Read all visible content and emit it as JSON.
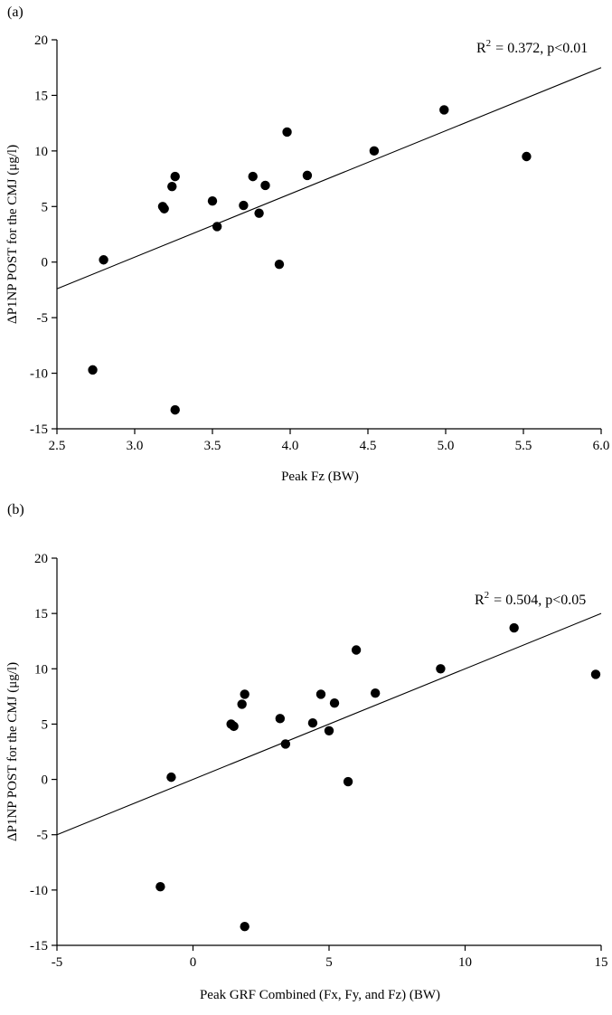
{
  "figure": {
    "panel_a_label": "(a)",
    "panel_b_label": "(b)"
  },
  "chart_data": [
    {
      "type": "scatter",
      "panel": "(a)",
      "title": "",
      "xlabel": "Peak Fz (BW)",
      "ylabel": "ΔP1NP POST for the CMJ (μg/l)",
      "xlim": [
        2.5,
        6.0
      ],
      "ylim": [
        -15,
        20
      ],
      "xticks": [
        "2.5",
        "3.0",
        "3.5",
        "4.0",
        "4.5",
        "5.0",
        "5.5",
        "6.0"
      ],
      "yticks": [
        "-15",
        "-10",
        "-5",
        "0",
        "5",
        "10",
        "15",
        "20"
      ],
      "x": [
        2.73,
        2.8,
        3.18,
        3.19,
        3.24,
        3.26,
        3.26,
        3.5,
        3.53,
        3.7,
        3.76,
        3.8,
        3.84,
        3.93,
        3.98,
        4.11,
        4.54,
        4.99,
        5.52
      ],
      "y": [
        -9.7,
        0.2,
        5.0,
        4.8,
        6.8,
        7.7,
        -13.3,
        5.5,
        3.2,
        5.1,
        7.7,
        4.4,
        6.9,
        -0.2,
        11.7,
        7.8,
        10.0,
        13.7,
        9.5
      ],
      "trendline": {
        "x": [
          2.5,
          6.0
        ],
        "y": [
          -2.4,
          17.5
        ]
      },
      "annotation_r": "R",
      "annotation_sup": "2",
      "annotation_rest": "= 0.372, p<0.01",
      "grid": false,
      "legend": "none"
    },
    {
      "type": "scatter",
      "panel": "(b)",
      "title": "",
      "xlabel": "Peak GRF Combined (Fx, Fy, and Fz) (BW)",
      "ylabel": "ΔP1NP POST for the CMJ (μg/l)",
      "xlim": [
        -5,
        15
      ],
      "ylim": [
        -15,
        20
      ],
      "xticks": [
        "-5",
        "0",
        "5",
        "10",
        "15"
      ],
      "yticks": [
        "-15",
        "-10",
        "-5",
        "0",
        "5",
        "10",
        "15",
        "20"
      ],
      "x": [
        -1.2,
        -0.8,
        1.4,
        1.5,
        1.8,
        1.9,
        1.9,
        3.2,
        3.4,
        4.4,
        4.7,
        5.0,
        5.2,
        5.7,
        6.0,
        6.7,
        9.1,
        11.8,
        14.8
      ],
      "y": [
        -9.7,
        0.2,
        5.0,
        4.8,
        6.8,
        7.7,
        -13.3,
        5.5,
        3.2,
        5.1,
        7.7,
        4.4,
        6.9,
        -0.2,
        11.7,
        7.8,
        10.0,
        13.7,
        9.5
      ],
      "trendline": {
        "x": [
          -5,
          15
        ],
        "y": [
          -5.0,
          15.0
        ]
      },
      "annotation_r": "R",
      "annotation_sup": "2",
      "annotation_rest": "= 0.504, p<0.05",
      "grid": false,
      "legend": "none"
    }
  ]
}
